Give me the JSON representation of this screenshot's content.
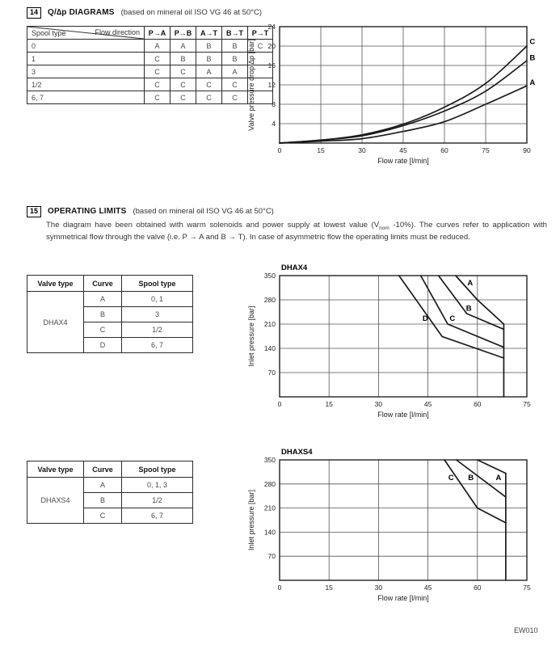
{
  "page": {
    "footer": "EW010"
  },
  "section14": {
    "number": "14",
    "title": "Q/∆p DIAGRAMS",
    "subtitle": "(based on mineral oil ISO VG 46 at 50°C)",
    "table": {
      "corner_top": "Flow direction",
      "corner_bottom": "Spool type",
      "columns": [
        "P→A",
        "P→B",
        "A→T",
        "B→T",
        "P→T"
      ],
      "rows": [
        {
          "spool": "0",
          "values": [
            "A",
            "A",
            "B",
            "B",
            "C"
          ]
        },
        {
          "spool": "1",
          "values": [
            "C",
            "B",
            "B",
            "B",
            ""
          ]
        },
        {
          "spool": "3",
          "values": [
            "C",
            "C",
            "A",
            "A",
            ""
          ]
        },
        {
          "spool": "1/2",
          "values": [
            "C",
            "C",
            "C",
            "C",
            ""
          ]
        },
        {
          "spool": "6, 7",
          "values": [
            "C",
            "C",
            "C",
            "C",
            ""
          ]
        }
      ]
    }
  },
  "section15": {
    "number": "15",
    "title": "OPERATING LIMITS",
    "subtitle": "(based on mineral oil ISO VG 46 at 50°C)",
    "body_1": "The diagram have been obtained with warm solenoids and power supply at lowest value (V",
    "body_sub": "nom",
    "body_2": " -10%). The curves refer to application with symmetrical flow through the valve (i.e. P → A and B → T). In case of asymmetric flow the operating limits must be reduced.",
    "dhax4_table": {
      "headers": [
        "Valve type",
        "Curve",
        "Spool type"
      ],
      "valve": "DHAX4",
      "rows": [
        [
          "A",
          "0, 1"
        ],
        [
          "B",
          "3"
        ],
        [
          "C",
          "1/2"
        ],
        [
          "D",
          "6, 7"
        ]
      ]
    },
    "dhaxs4_table": {
      "headers": [
        "Valve type",
        "Curve",
        "Spool type"
      ],
      "valve": "DHAXS4",
      "rows": [
        [
          "A",
          "0, 1, 3"
        ],
        [
          "B",
          "1/2"
        ],
        [
          "C",
          "6, 7"
        ]
      ]
    }
  },
  "chart_data": [
    {
      "id": "q-dp-diagram",
      "type": "line",
      "smooth": true,
      "title": "",
      "xlabel": "Flow rate [l/min]",
      "ylabel": "Valve pressure drop ∆p [bar]",
      "xlim": [
        0,
        90
      ],
      "ylim": [
        0,
        24
      ],
      "xticks": [
        0,
        15,
        30,
        45,
        60,
        75,
        90
      ],
      "yticks": [
        0,
        4,
        8,
        12,
        16,
        20,
        24
      ],
      "grid": true,
      "series": [
        {
          "name": "C",
          "points": [
            [
              0,
              0
            ],
            [
              15,
              0.6
            ],
            [
              30,
              1.7
            ],
            [
              45,
              3.9
            ],
            [
              60,
              7.4
            ],
            [
              75,
              12.3
            ],
            [
              90,
              20
            ]
          ],
          "label": {
            "x": 91,
            "y": 20.4,
            "anchor": "start"
          }
        },
        {
          "name": "B",
          "points": [
            [
              0,
              0
            ],
            [
              15,
              0.6
            ],
            [
              30,
              1.5
            ],
            [
              45,
              3.6
            ],
            [
              60,
              6.6
            ],
            [
              75,
              10.7
            ],
            [
              90,
              17
            ]
          ],
          "label": {
            "x": 91,
            "y": 17.1,
            "anchor": "start"
          }
        },
        {
          "name": "A",
          "points": [
            [
              0,
              0
            ],
            [
              15,
              0.4
            ],
            [
              30,
              0.9
            ],
            [
              45,
              2.4
            ],
            [
              60,
              4.4
            ],
            [
              75,
              8.0
            ],
            [
              90,
              11.8
            ]
          ],
          "label": {
            "x": 91,
            "y": 12.0,
            "anchor": "start"
          }
        }
      ]
    },
    {
      "id": "dhax4-operating-limits",
      "type": "line",
      "smooth": false,
      "title": "DHAX4",
      "xlabel": "Flow rate [l/min]",
      "ylabel": "Inlet pressure [bar]",
      "xlim": [
        0,
        75
      ],
      "ylim": [
        0,
        350
      ],
      "xticks": [
        0,
        15,
        30,
        45,
        60,
        75
      ],
      "yticks": [
        0,
        70,
        140,
        210,
        280,
        350
      ],
      "grid": true,
      "series": [
        {
          "name": "A",
          "points": [
            [
              53.4,
              350
            ],
            [
              60,
              280
            ],
            [
              68,
              210
            ]
          ],
          "label": {
            "x": 57.8,
            "y": 322
          }
        },
        {
          "name": "B",
          "points": [
            [
              48.2,
              350
            ],
            [
              56.8,
              240
            ],
            [
              68,
              195
            ]
          ],
          "label": {
            "x": 57.4,
            "y": 249
          }
        },
        {
          "name": "C",
          "points": [
            [
              42.8,
              350
            ],
            [
              51,
              210
            ],
            [
              68,
              143
            ]
          ],
          "label": {
            "x": 52.4,
            "y": 219
          }
        },
        {
          "name": "D",
          "points": [
            [
              36.2,
              350
            ],
            [
              49.3,
              174
            ],
            [
              68,
              112
            ]
          ],
          "label": {
            "x": 44.2,
            "y": 219
          }
        },
        {
          "name": "max-flow-limit",
          "points": [
            [
              68,
              210
            ],
            [
              68,
              0
            ]
          ]
        }
      ]
    },
    {
      "id": "dhaxs4-operating-limits",
      "type": "line",
      "smooth": false,
      "title": "DHAXS4",
      "xlabel": "Flow rate [l/min]",
      "ylabel": "Inlet pressure [bar]",
      "xlim": [
        0,
        75
      ],
      "ylim": [
        0,
        350
      ],
      "xticks": [
        0,
        15,
        30,
        45,
        60,
        75
      ],
      "yticks": [
        0,
        70,
        140,
        210,
        280,
        350
      ],
      "grid": true,
      "series": [
        {
          "name": "A",
          "points": [
            [
              60,
              350
            ],
            [
              68.6,
              311
            ]
          ],
          "label": {
            "x": 66.4,
            "y": 291
          }
        },
        {
          "name": "B",
          "points": [
            [
              53.6,
              350
            ],
            [
              68.6,
              242
            ]
          ],
          "label": {
            "x": 58.0,
            "y": 291
          }
        },
        {
          "name": "C",
          "points": [
            [
              50,
              350
            ],
            [
              60,
              210
            ],
            [
              68.6,
              167
            ]
          ],
          "label": {
            "x": 52.0,
            "y": 291
          }
        },
        {
          "name": "max-flow-limit",
          "points": [
            [
              68.6,
              311
            ],
            [
              68.6,
              0
            ]
          ]
        }
      ]
    }
  ]
}
